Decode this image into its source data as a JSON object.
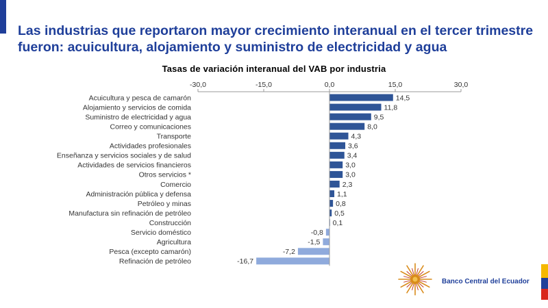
{
  "slide": {
    "title": "Las industrias que reportaron mayor crecimiento interanual en el tercer trimestre fueron: acuicultura, alojamiento y suministro de electricidad y agua",
    "brand": "Banco Central del Ecuador",
    "colors": {
      "title": "#1f3f9a",
      "accent": "#1f3f9a",
      "bar_dark": "#2f5597",
      "bar_light": "#8faadc",
      "flag_yellow": "#f5b800",
      "flag_blue": "#1f3f9a",
      "flag_red": "#d9261c"
    }
  },
  "chart_data": {
    "type": "bar",
    "orientation": "horizontal",
    "title": "Tasas de variación interanual del VAB por industria",
    "categories": [
      "Acuicultura y pesca de camarón",
      "Alojamiento y servicios de comida",
      "Suministro de electricidad y agua",
      "Correo y comunicaciones",
      "Transporte",
      "Actividades profesionales",
      "Enseñanza y servicios sociales y de salud",
      "Actividades de servicios financieros",
      "Otros servicios *",
      "Comercio",
      "Administración pública y defensa",
      "Petróleo y minas",
      "Manufactura sin refinación de petróleo",
      "Construcción",
      "Servicio doméstico",
      "Agricultura",
      "Pesca (excepto camarón)",
      "Refinación de petróleo"
    ],
    "values": [
      14.5,
      11.8,
      9.5,
      8.0,
      4.3,
      3.6,
      3.4,
      3.0,
      3.0,
      2.3,
      1.1,
      0.8,
      0.5,
      0.1,
      -0.8,
      -1.5,
      -7.2,
      -16.7
    ],
    "value_labels": [
      "14,5",
      "11,8",
      "9,5",
      "8,0",
      "4,3",
      "3,6",
      "3,4",
      "3,0",
      "3,0",
      "2,3",
      "1,1",
      "0,8",
      "0,5",
      "0,1",
      "-0,8",
      "-1,5",
      "-7,2",
      "-16,7"
    ],
    "xlim": [
      -30,
      30
    ],
    "ticks": [
      -30,
      -15,
      0,
      15,
      30
    ],
    "tick_labels": [
      "-30,0",
      "-15,0",
      "0,0",
      "15,0",
      "30,0"
    ],
    "axis_position": "top",
    "grid": false,
    "legend": "none"
  }
}
